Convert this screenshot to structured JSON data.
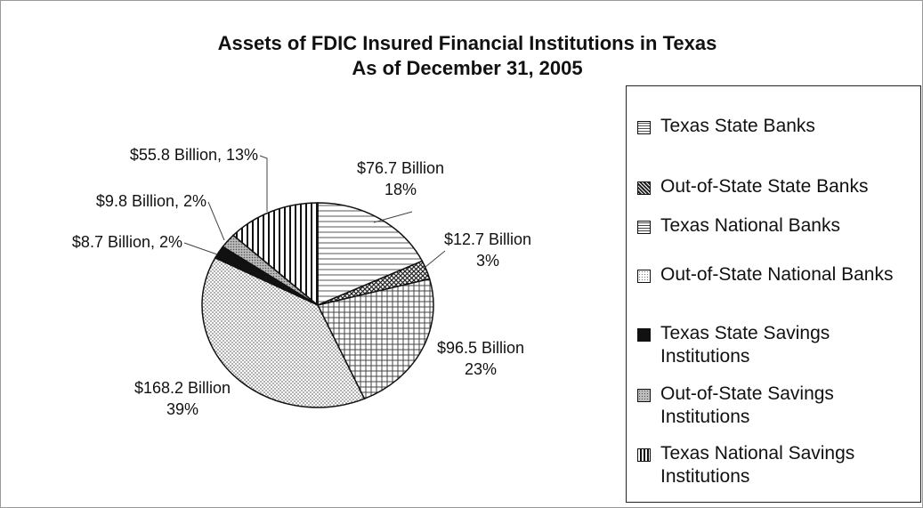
{
  "chart_data": {
    "type": "pie",
    "title": "Assets of FDIC Insured Financial Institutions in Texas",
    "subtitle": "As of December 31, 2005",
    "categories": [
      "Texas State Banks",
      "Out-of-State State Banks",
      "Texas National Banks",
      "Out-of-State National Banks",
      "Texas State Savings Institutions",
      "Out-of-State Savings Institutions",
      "Texas National Savings Institutions"
    ],
    "values": [
      76.7,
      12.7,
      96.5,
      168.2,
      8.7,
      9.8,
      55.8
    ],
    "value_labels": [
      [
        "$76.7 Billion",
        "18%"
      ],
      [
        "$12.7 Billion",
        "3%"
      ],
      [
        "$96.5 Billion",
        "23%"
      ],
      [
        "$168.2 Billion",
        "39%"
      ],
      [
        "$8.7 Billion, 2%"
      ],
      [
        "$9.8 Billion, 2%"
      ],
      [
        "$55.8 Billion, 13%"
      ]
    ],
    "legend": "right"
  }
}
